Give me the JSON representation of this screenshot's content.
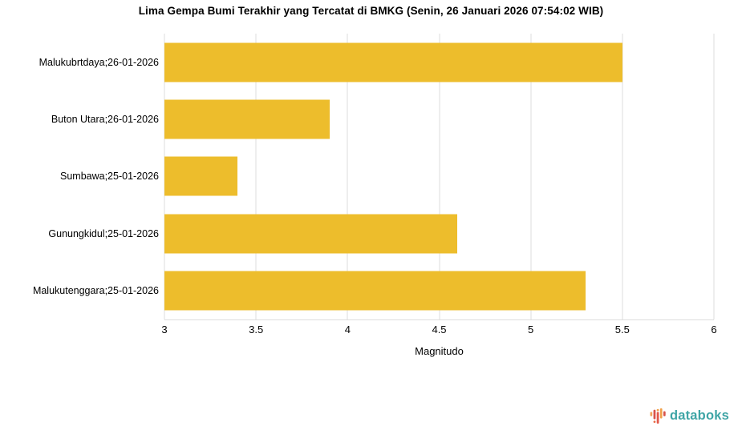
{
  "chart_data": {
    "type": "bar",
    "orientation": "horizontal",
    "title": "Lima Gempa Bumi Terakhir yang Tercatat di BMKG (Senin, 26 Januari 2026 07:54:02 WIB)",
    "categories": [
      "Malukubrtdaya;26-01-2026",
      "Buton Utara;26-01-2026",
      "Sumbawa;25-01-2026",
      "Gunungkidul;25-01-2026",
      "Malukutenggara;25-01-2026"
    ],
    "values": [
      5.5,
      3.9,
      3.4,
      4.6,
      5.3
    ],
    "xlabel": "Magnitudo",
    "xlim": [
      3,
      6
    ],
    "xticks": [
      3,
      3.5,
      4,
      4.5,
      5,
      5.5,
      6
    ],
    "xtick_labels": [
      "3",
      "3.5",
      "4",
      "4.5",
      "5",
      "5.5",
      "6"
    ],
    "bar_color": "#EDBD2C",
    "gridline_color": "#DDDDDD",
    "grid": "vertical",
    "legend": "none"
  },
  "branding": {
    "logo_text": "databoks",
    "logo_text_color": "#3FA5A6",
    "logo_icon": "equalizer-bars-icon",
    "logo_icon_colors": [
      "#D9534A",
      "#E96A45",
      "#F0A04A",
      "#F0A35B"
    ]
  }
}
